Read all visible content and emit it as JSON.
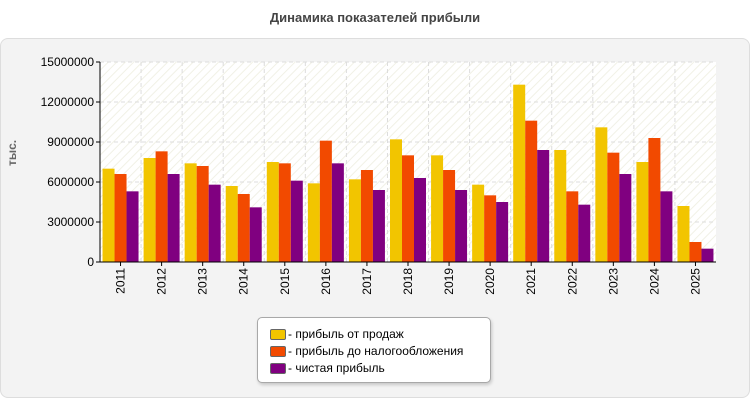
{
  "title": "Динамика показателей прибыли",
  "chart_data": {
    "type": "bar",
    "title": "Динамика показателей прибыли",
    "ylabel": "тыс.",
    "xlabel": "",
    "ylim": [
      0,
      15000000
    ],
    "yticks": [
      0,
      3000000,
      6000000,
      9000000,
      12000000,
      15000000
    ],
    "grid": true,
    "legend_position": "bottom-center",
    "categories": [
      "2011",
      "2012",
      "2013",
      "2014",
      "2015",
      "2016",
      "2017",
      "2018",
      "2019",
      "2020",
      "2021",
      "2022",
      "2023",
      "2024",
      "2025"
    ],
    "series": [
      {
        "name": "- прибыль от продаж",
        "color": "#f2c500",
        "values": [
          7000000,
          7800000,
          7400000,
          5700000,
          7500000,
          5900000,
          6200000,
          9200000,
          8000000,
          5800000,
          13300000,
          8400000,
          10100000,
          7500000,
          4200000
        ]
      },
      {
        "name": "- прибыль до налогообложения",
        "color": "#f24a00",
        "values": [
          6600000,
          8300000,
          7200000,
          5100000,
          7400000,
          9100000,
          6900000,
          8000000,
          6900000,
          5000000,
          10600000,
          5300000,
          8200000,
          9300000,
          1500000
        ]
      },
      {
        "name": "- чистая прибыль",
        "color": "#800080",
        "values": [
          5300000,
          6600000,
          5800000,
          4100000,
          6100000,
          7400000,
          5400000,
          6300000,
          5400000,
          4500000,
          8400000,
          4300000,
          6600000,
          5300000,
          1000000
        ]
      }
    ]
  }
}
